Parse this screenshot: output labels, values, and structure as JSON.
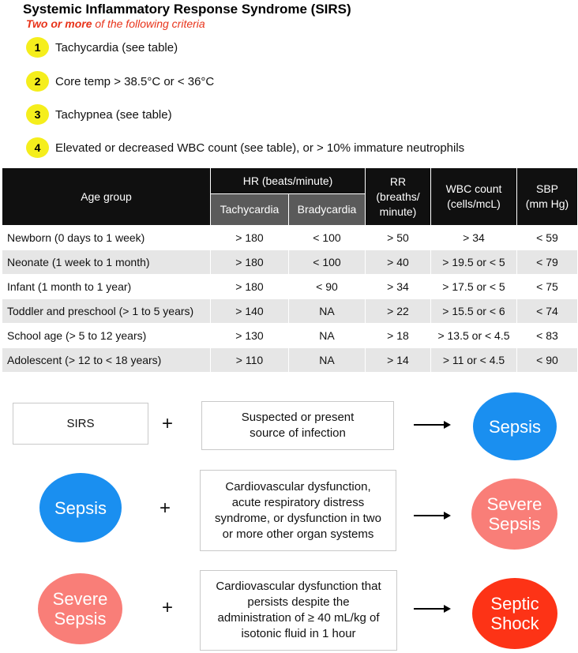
{
  "header": {
    "title": "Systemic Inflammatory Response Syndrome (SIRS)",
    "subtitle_bold": "Two or more",
    "subtitle_rest": " of the following criteria"
  },
  "criteria": [
    {
      "num": "1",
      "text": "Tachycardia (see table)"
    },
    {
      "num": "2",
      "text": "Core temp > 38.5°C or < 36°C"
    },
    {
      "num": "3",
      "text": "Tachypnea (see table)"
    },
    {
      "num": "4",
      "text": "Elevated or decreased WBC count (see table), or > 10% immature neutrophils"
    }
  ],
  "table": {
    "headers": {
      "age_group": "Age group",
      "hr": "HR (beats/minute)",
      "tachycardia": "Tachycardia",
      "bradycardia": "Bradycardia",
      "rr_line1": "RR",
      "rr_line2": "(breaths/",
      "rr_line3": "minute)",
      "wbc_line1": "WBC count",
      "wbc_line2": "(cells/mcL)",
      "sbp_line1": "SBP",
      "sbp_line2": "(mm Hg)"
    },
    "rows": [
      {
        "age": "Newborn (0 days to 1 week)",
        "tachy": "> 180",
        "brady": "< 100",
        "rr": "> 50",
        "wbc": "> 34",
        "sbp": "< 59"
      },
      {
        "age": "Neonate (1 week to 1 month)",
        "tachy": "> 180",
        "brady": "< 100",
        "rr": "> 40",
        "wbc": "> 19.5 or < 5",
        "sbp": "< 79"
      },
      {
        "age": "Infant (1 month to 1 year)",
        "tachy": "> 180",
        "brady": "< 90",
        "rr": "> 34",
        "wbc": "> 17.5 or < 5",
        "sbp": "< 75"
      },
      {
        "age": "Toddler and preschool (> 1 to 5 years)",
        "tachy": "> 140",
        "brady": "NA",
        "rr": "> 22",
        "wbc": "> 15.5 or < 6",
        "sbp": "< 74"
      },
      {
        "age": "School age (> 5 to 12 years)",
        "tachy": "> 130",
        "brady": "NA",
        "rr": "> 18",
        "wbc": "> 13.5 or < 4.5",
        "sbp": "< 83"
      },
      {
        "age": "Adolescent (> 12 to < 18 years)",
        "tachy": "> 110",
        "brady": "NA",
        "rr": "> 14",
        "wbc": "> 11 or < 4.5",
        "sbp": "< 90"
      }
    ]
  },
  "flow": {
    "plus": "+",
    "row1": {
      "left": "SIRS",
      "middle_line1": "Suspected or present",
      "middle_line2": "source of infection",
      "result": "Sepsis"
    },
    "row2": {
      "left": "Sepsis",
      "middle_line1": "Cardiovascular dysfunction,",
      "middle_line2": "acute respiratory distress",
      "middle_line3": "syndrome, or dysfunction in two",
      "middle_line4": "or more other organ systems",
      "result_line1": "Severe",
      "result_line2": "Sepsis"
    },
    "row3": {
      "left_line1": "Severe",
      "left_line2": "Sepsis",
      "middle_line1": "Cardiovascular dysfunction that",
      "middle_line2": "persists despite the",
      "middle_line3": "administration of ≥ 40 mL/kg of",
      "middle_line4": "isotonic fluid in 1 hour",
      "result_line1": "Septic",
      "result_line2": "Shock"
    }
  },
  "colors": {
    "accent_red": "#e8331a",
    "badge_yellow": "#f5ee1c",
    "sepsis_blue": "#1a8ff0",
    "severe_sepsis_salmon": "#f97e78",
    "septic_shock_red": "#fd3316"
  }
}
